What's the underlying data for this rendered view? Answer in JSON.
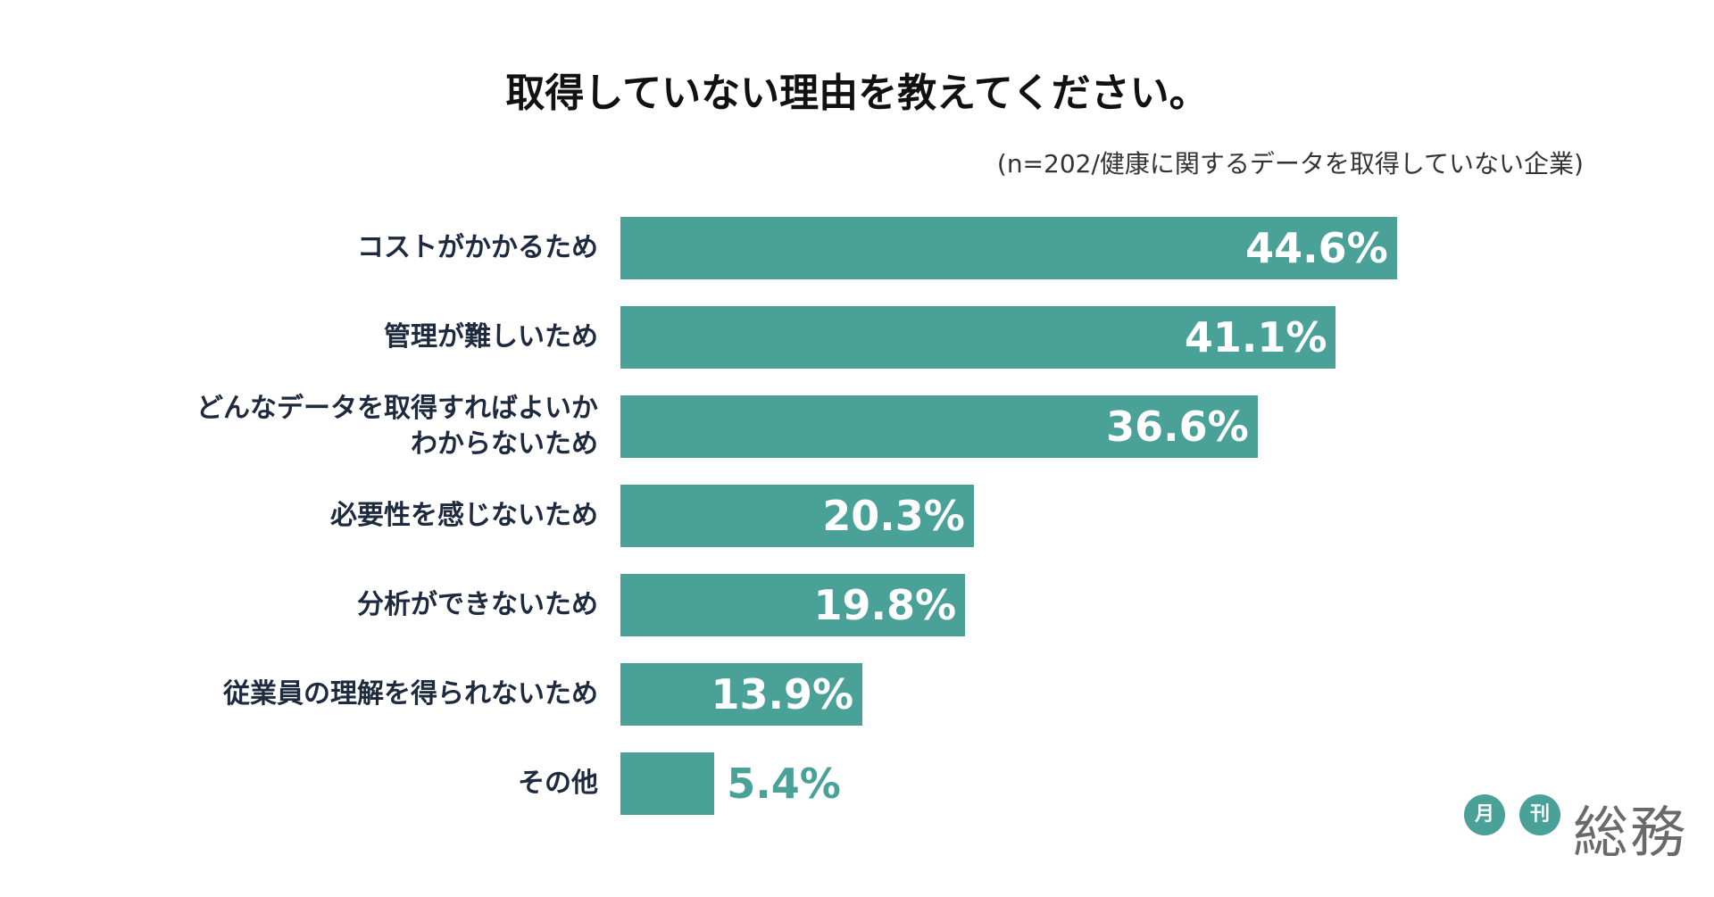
{
  "chart_data": {
    "type": "bar",
    "orientation": "horizontal",
    "title": "取得していない理由を教えてください。",
    "subtitle": "(n=202/健康に関するデータを取得していない企業)",
    "categories": [
      "コストがかかるため",
      "管理が難しいため",
      "どんなデータを取得すればよいか\nわからないため",
      "必要性を感じないため",
      "分析ができないため",
      "従業員の理解を得られないため",
      "その他"
    ],
    "values": [
      44.6,
      41.1,
      36.6,
      20.3,
      19.8,
      13.9,
      5.4
    ],
    "value_labels": [
      "44.6%",
      "41.1%",
      "36.6%",
      "20.3%",
      "19.8%",
      "13.9%",
      "5.4%"
    ],
    "xlim": [
      0,
      50
    ],
    "grid": false,
    "bar_color": "#4aa198"
  },
  "logo": {
    "badge_1": "月",
    "badge_2": "刊",
    "wordmark": "総務"
  }
}
